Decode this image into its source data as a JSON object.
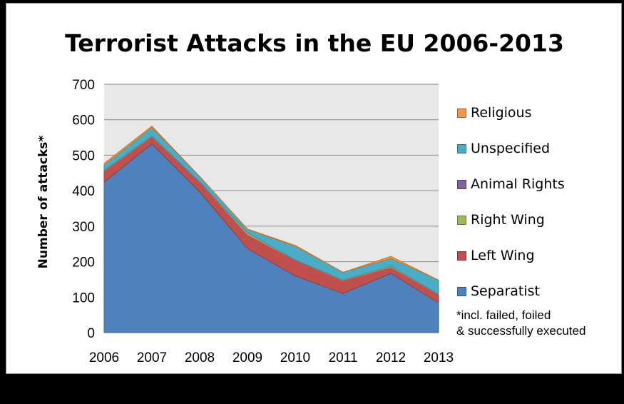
{
  "chart_data": {
    "type": "area",
    "stacked": true,
    "title": "Terrorist Attacks in the EU 2006-2013",
    "ylabel": "Number of attacks*",
    "xlabel": "",
    "x": [
      "2006",
      "2007",
      "2008",
      "2009",
      "2010",
      "2011",
      "2012",
      "2013"
    ],
    "ylim": [
      0,
      700
    ],
    "yticks": [
      0,
      100,
      200,
      300,
      400,
      500,
      600,
      700
    ],
    "grid": true,
    "legend_position": "right",
    "series": [
      {
        "name": "Separatist",
        "color": "#4f81bd",
        "values": [
          424,
          532,
          397,
          237,
          160,
          110,
          167,
          84
        ]
      },
      {
        "name": "Left Wing",
        "color": "#c0504d",
        "values": [
          32,
          21,
          28,
          40,
          45,
          37,
          18,
          24
        ]
      },
      {
        "name": "Right Wing",
        "color": "#9bbb59",
        "values": [
          1,
          1,
          0,
          4,
          0,
          1,
          2,
          0
        ]
      },
      {
        "name": "Animal Rights",
        "color": "#8064a2",
        "values": [
          0,
          0,
          0,
          0,
          0,
          0,
          0,
          0
        ]
      },
      {
        "name": "Unspecified",
        "color": "#4bacc6",
        "values": [
          15,
          24,
          15,
          10,
          38,
          22,
          22,
          40
        ]
      },
      {
        "name": "Religious",
        "color": "#f79646",
        "values": [
          5,
          4,
          0,
          1,
          3,
          0,
          6,
          0
        ]
      }
    ],
    "note_lines": [
      "*incl. failed, foiled",
      "& successfully executed"
    ]
  },
  "colors": {
    "plot_background": "#e8e8e8",
    "gridline": "#8a8a8a",
    "separatist_edge": "#3c6a9e",
    "left_wing_edge": "#9a3c3a",
    "unspecified_edge": "#3a8fa6",
    "religious_edge": "#c8762f"
  }
}
